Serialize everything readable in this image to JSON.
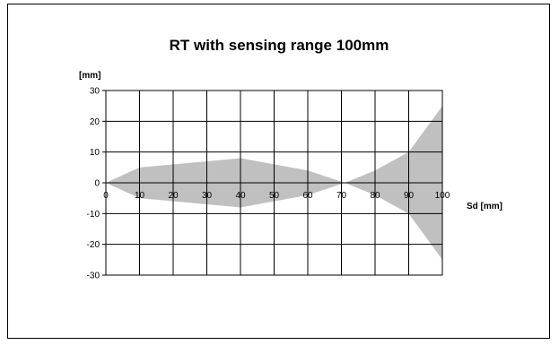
{
  "chart_data": {
    "type": "area",
    "title": "RT with sensing range 100mm",
    "ylabel": "[mm]",
    "xlabel": "Sd [mm]",
    "xlim": [
      0,
      100
    ],
    "ylim": [
      -30,
      30
    ],
    "x_ticks": [
      0,
      10,
      20,
      30,
      40,
      50,
      60,
      70,
      80,
      90,
      100
    ],
    "y_ticks": [
      30,
      20,
      10,
      0,
      -10,
      -20,
      -30
    ],
    "grid": true,
    "fill_color": "#c0c0c0",
    "series": [
      {
        "x": [
          0,
          10,
          40,
          60,
          71,
          80,
          90,
          100
        ],
        "upper": [
          0,
          5,
          8,
          4,
          0,
          4,
          10,
          25
        ],
        "lower": [
          0,
          -5,
          -8,
          -4,
          0,
          -4,
          -10,
          -25
        ]
      }
    ]
  }
}
